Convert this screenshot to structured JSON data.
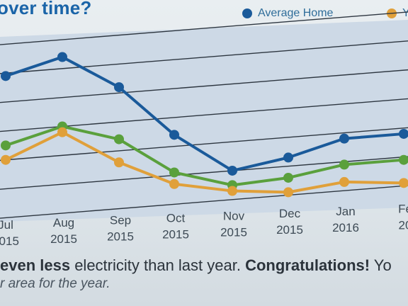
{
  "header": {
    "title": "over time?",
    "legend": [
      {
        "label": "Average Home",
        "color": "#1a5a9a"
      },
      {
        "label": "Y",
        "color": "#e0a03a"
      }
    ]
  },
  "chart_data": {
    "type": "line",
    "categories": [
      {
        "month": "Jul",
        "year": "2015"
      },
      {
        "month": "Aug",
        "year": "2015"
      },
      {
        "month": "Sep",
        "year": "2015"
      },
      {
        "month": "Oct",
        "year": "2015"
      },
      {
        "month": "Nov",
        "year": "2015"
      },
      {
        "month": "Dec",
        "year": "2015"
      },
      {
        "month": "Jan",
        "year": "2016"
      },
      {
        "month": "Fe",
        "year": "20"
      }
    ],
    "series": [
      {
        "name": "Average Home",
        "color": "#1a5a9a",
        "values": [
          4.9,
          5.4,
          4.2,
          2.4,
          1.0,
          1.3,
          1.8,
          1.8
        ]
      },
      {
        "name": "",
        "color": "#5aa03c",
        "values": [
          2.5,
          3.0,
          2.4,
          1.1,
          0.5,
          0.6,
          0.9,
          0.9
        ]
      },
      {
        "name": "Y",
        "color": "#e0a03a",
        "values": [
          2.0,
          2.8,
          1.6,
          0.7,
          0.3,
          0.1,
          0.3,
          0.1
        ]
      }
    ],
    "ylim": [
      0,
      6
    ],
    "grid": true,
    "legend_position": "top-right"
  },
  "footer": {
    "part1": "even less",
    "part2": " electricity than last year. ",
    "part3": "Congratulations!",
    "part4": " Yo",
    "line2": "r area for the year."
  }
}
